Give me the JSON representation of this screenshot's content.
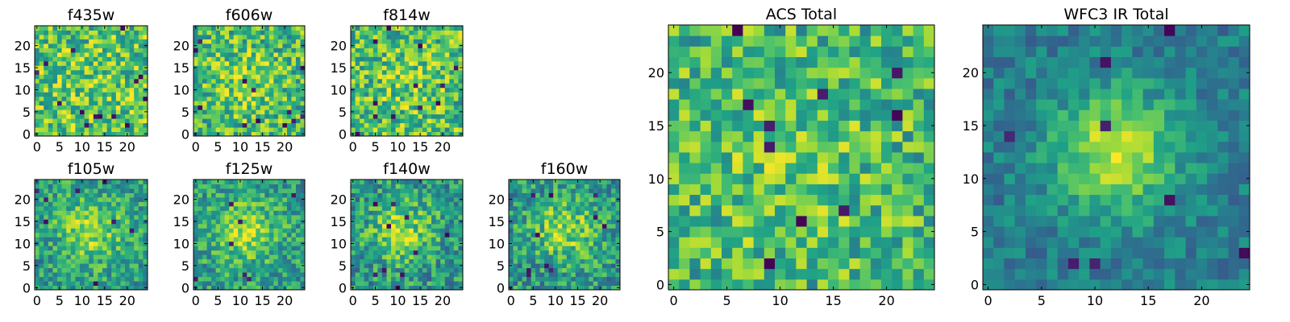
{
  "chart_data": [
    {
      "type": "heatmap",
      "title": "f435w",
      "seed": 11,
      "size": 25,
      "blob": {
        "cx": 12,
        "cy": 12,
        "sigma": 6,
        "amp": 0.05
      },
      "noise": 0.28,
      "base": 0.72,
      "dark_pixels": 14,
      "xticks": [
        0,
        5,
        10,
        15,
        20
      ],
      "yticks": [
        0,
        5,
        10,
        15,
        20
      ],
      "xlim": [
        -0.5,
        24.5
      ],
      "ylim": [
        -0.5,
        24.5
      ]
    },
    {
      "type": "heatmap",
      "title": "f606w",
      "seed": 23,
      "size": 25,
      "blob": {
        "cx": 11,
        "cy": 12,
        "sigma": 5,
        "amp": 0.15
      },
      "noise": 0.27,
      "base": 0.68,
      "dark_pixels": 12,
      "xticks": [
        0,
        5,
        10,
        15,
        20
      ],
      "yticks": [
        0,
        5,
        10,
        15,
        20
      ],
      "xlim": [
        -0.5,
        24.5
      ],
      "ylim": [
        -0.5,
        24.5
      ]
    },
    {
      "type": "heatmap",
      "title": "f814w",
      "seed": 37,
      "size": 25,
      "blob": {
        "cx": 12,
        "cy": 12,
        "sigma": 5,
        "amp": 0.08
      },
      "noise": 0.28,
      "base": 0.7,
      "dark_pixels": 12,
      "xticks": [
        0,
        5,
        10,
        15,
        20
      ],
      "yticks": [
        0,
        5,
        10,
        15,
        20
      ],
      "xlim": [
        -0.5,
        24.5
      ],
      "ylim": [
        -0.5,
        24.5
      ]
    },
    {
      "type": "heatmap",
      "title": "f105w",
      "seed": 41,
      "size": 25,
      "blob": {
        "cx": 12,
        "cy": 13,
        "sigma": 5,
        "amp": 0.3
      },
      "noise": 0.22,
      "base": 0.55,
      "dark_pixels": 8,
      "xticks": [
        0,
        5,
        10,
        15,
        20
      ],
      "yticks": [
        0,
        5,
        10,
        15,
        20
      ],
      "xlim": [
        -0.5,
        24.5
      ],
      "ylim": [
        -0.5,
        24.5
      ]
    },
    {
      "type": "heatmap",
      "title": "f125w",
      "seed": 53,
      "size": 25,
      "blob": {
        "cx": 11,
        "cy": 13,
        "sigma": 5,
        "amp": 0.32
      },
      "noise": 0.22,
      "base": 0.55,
      "dark_pixels": 7,
      "xticks": [
        0,
        5,
        10,
        15,
        20
      ],
      "yticks": [
        0,
        5,
        10,
        15,
        20
      ],
      "xlim": [
        -0.5,
        24.5
      ],
      "ylim": [
        -0.5,
        24.5
      ]
    },
    {
      "type": "heatmap",
      "title": "f140w",
      "seed": 67,
      "size": 25,
      "blob": {
        "cx": 11,
        "cy": 13,
        "sigma": 5,
        "amp": 0.32
      },
      "noise": 0.24,
      "base": 0.52,
      "dark_pixels": 10,
      "xticks": [
        0,
        5,
        10,
        15,
        20
      ],
      "yticks": [
        0,
        5,
        10,
        15,
        20
      ],
      "xlim": [
        -0.5,
        24.5
      ],
      "ylim": [
        -0.5,
        24.5
      ]
    },
    {
      "type": "heatmap",
      "title": "f160w",
      "seed": 79,
      "size": 25,
      "blob": {
        "cx": 12,
        "cy": 13,
        "sigma": 5,
        "amp": 0.32
      },
      "noise": 0.24,
      "base": 0.52,
      "dark_pixels": 10,
      "xticks": [
        0,
        5,
        10,
        15,
        20
      ],
      "yticks": [
        0,
        5,
        10,
        15,
        20
      ],
      "xlim": [
        -0.5,
        24.5
      ],
      "ylim": [
        -0.5,
        24.5
      ]
    },
    {
      "type": "heatmap",
      "title": "ACS Total",
      "seed": 97,
      "size": 25,
      "blob": {
        "cx": 11,
        "cy": 12,
        "sigma": 6,
        "amp": 0.1
      },
      "noise": 0.25,
      "base": 0.66,
      "dark_pixels": 10,
      "xticks": [
        0,
        5,
        10,
        15,
        20
      ],
      "yticks": [
        0,
        5,
        10,
        15,
        20
      ],
      "xlim": [
        -0.5,
        24.5
      ],
      "ylim": [
        -0.5,
        24.5
      ]
    },
    {
      "type": "heatmap",
      "title": "WFC3 IR Total",
      "seed": 113,
      "size": 25,
      "blob": {
        "cx": 12,
        "cy": 12.5,
        "sigma": 4,
        "amp": 0.5
      },
      "noise": 0.14,
      "base": 0.42,
      "dark_pixels": 9,
      "xticks": [
        0,
        5,
        10,
        15,
        20
      ],
      "yticks": [
        0,
        5,
        10,
        15,
        20
      ],
      "xlim": [
        -0.5,
        24.5
      ],
      "ylim": [
        -0.5,
        24.5
      ]
    }
  ],
  "colormap": [
    "#440154",
    "#46327e",
    "#365c8d",
    "#277f8e",
    "#1fa187",
    "#4ac16d",
    "#a0da39",
    "#fde725"
  ]
}
